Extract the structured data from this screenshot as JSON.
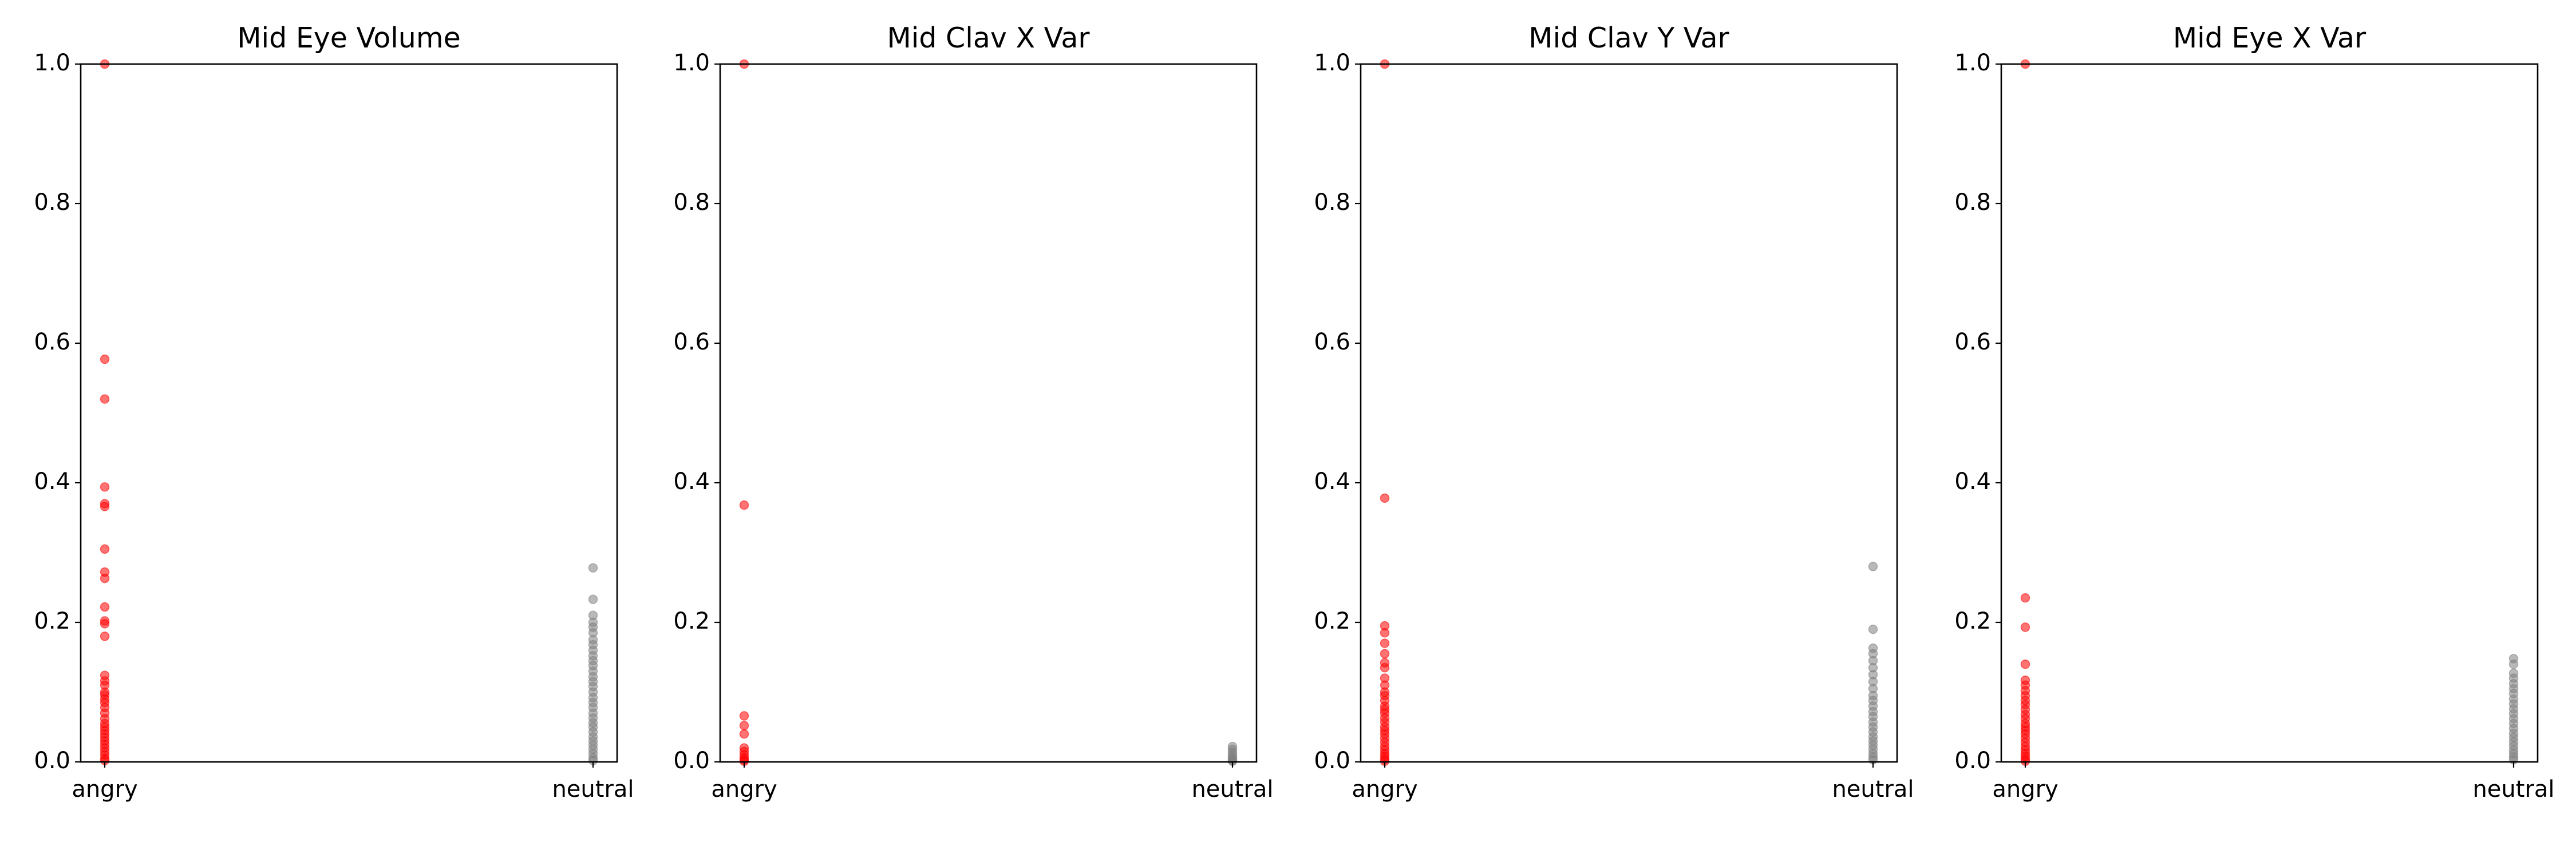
{
  "chart_data": [
    {
      "type": "scatter",
      "title": "Mid Eye Volume",
      "categories": [
        "angry",
        "neutral"
      ],
      "ylim": [
        0,
        1
      ],
      "yticks": [
        "0.0",
        "0.2",
        "0.4",
        "0.6",
        "0.8",
        "1.0"
      ],
      "grid": false,
      "series": [
        {
          "color": "#ff0000",
          "x": "angry",
          "values": [
            1.0,
            0.577,
            0.52,
            0.394,
            0.37,
            0.366,
            0.305,
            0.272,
            0.263,
            0.222,
            0.202,
            0.198,
            0.18,
            0.124,
            0.116,
            0.11,
            0.1,
            0.096,
            0.09,
            0.085,
            0.078,
            0.07,
            0.062,
            0.055,
            0.05,
            0.045,
            0.04,
            0.035,
            0.03,
            0.025,
            0.02,
            0.015,
            0.01,
            0.005,
            0.002
          ]
        },
        {
          "color": "#808080",
          "x": "neutral",
          "values": [
            0.278,
            0.233,
            0.21,
            0.2,
            0.193,
            0.185,
            0.175,
            0.168,
            0.16,
            0.152,
            0.145,
            0.138,
            0.13,
            0.122,
            0.115,
            0.108,
            0.1,
            0.092,
            0.085,
            0.078,
            0.07,
            0.063,
            0.056,
            0.05,
            0.043,
            0.036,
            0.03,
            0.024,
            0.018,
            0.012,
            0.006,
            0.002
          ]
        }
      ]
    },
    {
      "type": "scatter",
      "title": "Mid Clav X Var",
      "categories": [
        "angry",
        "neutral"
      ],
      "ylim": [
        0,
        1
      ],
      "yticks": [
        "0.0",
        "0.2",
        "0.4",
        "0.6",
        "0.8",
        "1.0"
      ],
      "grid": false,
      "series": [
        {
          "color": "#ff0000",
          "x": "angry",
          "values": [
            1.0,
            0.368,
            0.066,
            0.052,
            0.04,
            0.02,
            0.015,
            0.01,
            0.006,
            0.003,
            0.001
          ]
        },
        {
          "color": "#808080",
          "x": "neutral",
          "values": [
            0.022,
            0.018,
            0.014,
            0.01,
            0.007,
            0.004,
            0.002,
            0.001
          ]
        }
      ]
    },
    {
      "type": "scatter",
      "title": "Mid Clav Y Var",
      "categories": [
        "angry",
        "neutral"
      ],
      "ylim": [
        0,
        1
      ],
      "yticks": [
        "0.0",
        "0.2",
        "0.4",
        "0.6",
        "0.8",
        "1.0"
      ],
      "grid": false,
      "series": [
        {
          "color": "#ff0000",
          "x": "angry",
          "values": [
            1.0,
            0.378,
            0.195,
            0.185,
            0.17,
            0.155,
            0.142,
            0.135,
            0.12,
            0.11,
            0.1,
            0.095,
            0.088,
            0.08,
            0.075,
            0.07,
            0.063,
            0.057,
            0.05,
            0.045,
            0.04,
            0.034,
            0.028,
            0.022,
            0.017,
            0.012,
            0.008,
            0.004,
            0.001
          ]
        },
        {
          "color": "#808080",
          "x": "neutral",
          "values": [
            0.28,
            0.19,
            0.163,
            0.155,
            0.145,
            0.135,
            0.125,
            0.115,
            0.105,
            0.095,
            0.088,
            0.08,
            0.072,
            0.065,
            0.057,
            0.05,
            0.043,
            0.036,
            0.03,
            0.024,
            0.018,
            0.012,
            0.007,
            0.003
          ]
        }
      ]
    },
    {
      "type": "scatter",
      "title": "Mid Eye X Var",
      "categories": [
        "angry",
        "neutral"
      ],
      "ylim": [
        0,
        1
      ],
      "yticks": [
        "0.0",
        "0.2",
        "0.4",
        "0.6",
        "0.8",
        "1.0"
      ],
      "grid": false,
      "series": [
        {
          "color": "#ff0000",
          "x": "angry",
          "values": [
            1.0,
            0.235,
            0.193,
            0.14,
            0.117,
            0.11,
            0.102,
            0.095,
            0.088,
            0.082,
            0.075,
            0.068,
            0.062,
            0.055,
            0.05,
            0.045,
            0.04,
            0.034,
            0.028,
            0.022,
            0.017,
            0.012,
            0.008,
            0.004,
            0.001
          ]
        },
        {
          "color": "#808080",
          "x": "neutral",
          "values": [
            0.148,
            0.14,
            0.127,
            0.12,
            0.112,
            0.105,
            0.098,
            0.09,
            0.083,
            0.076,
            0.069,
            0.062,
            0.055,
            0.048,
            0.041,
            0.035,
            0.029,
            0.023,
            0.017,
            0.012,
            0.007,
            0.003
          ]
        }
      ]
    }
  ]
}
